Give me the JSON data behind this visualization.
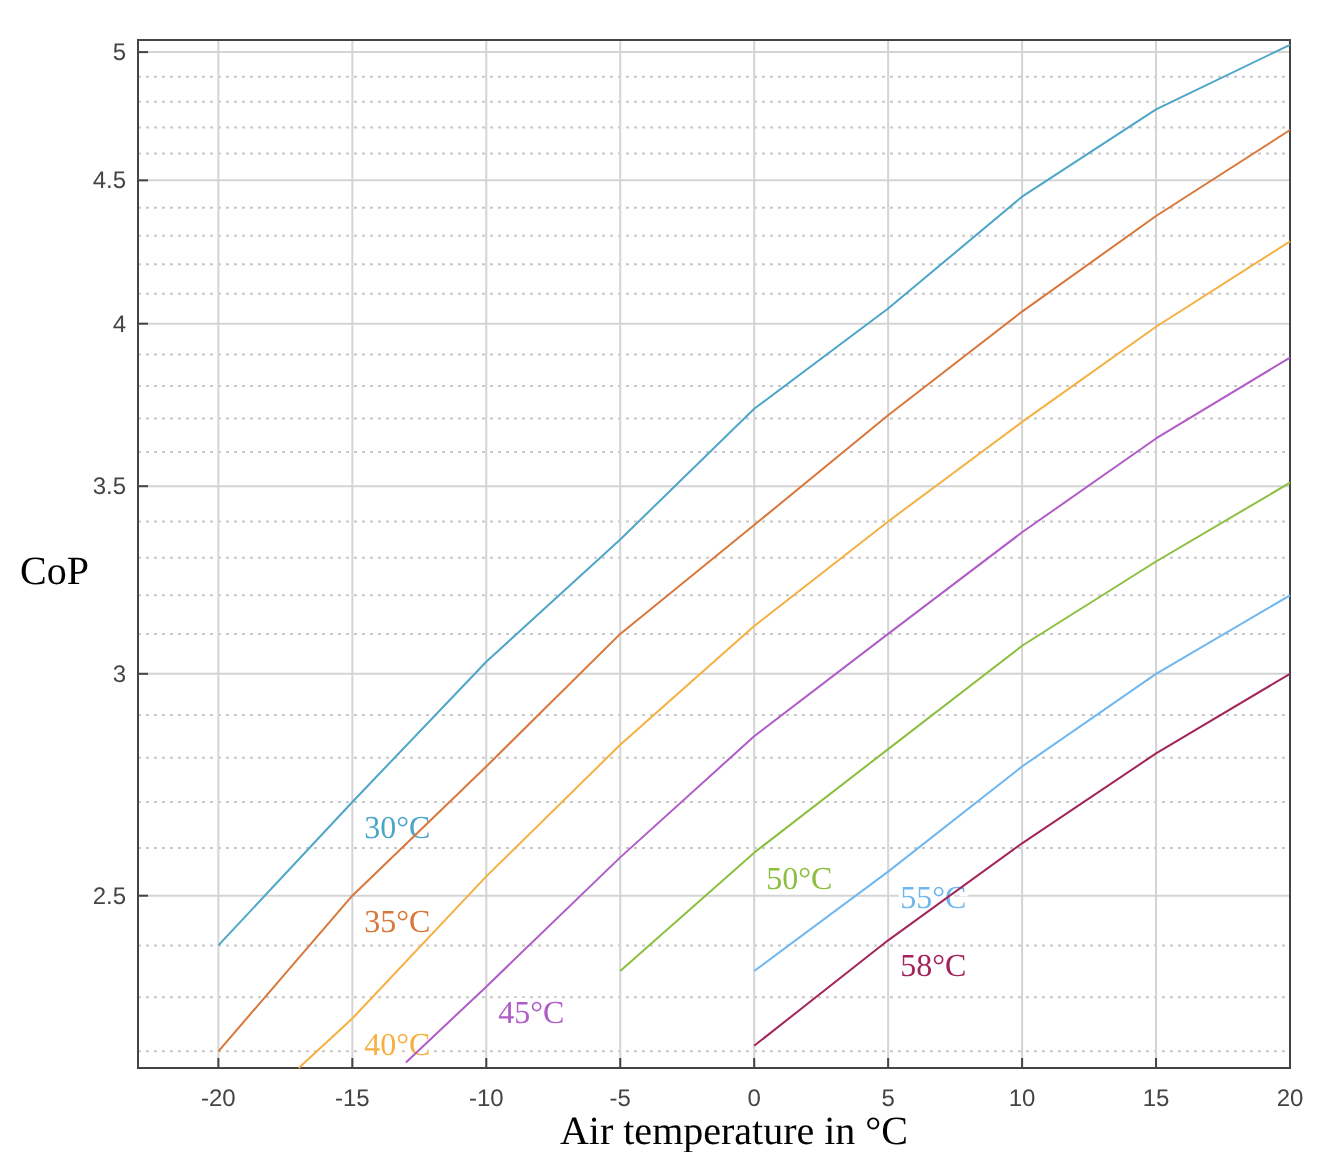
{
  "chart_data": {
    "type": "line",
    "xlabel": "Air temperature in °C",
    "ylabel": "CoP",
    "log": "y",
    "grid": true,
    "marker": "none",
    "line_style": "solid",
    "xlim": [
      -23,
      20
    ],
    "xticks": [
      -20,
      -15,
      -10,
      -5,
      0,
      5,
      10,
      15,
      20
    ],
    "ylim": [
      2.17,
      5.05
    ],
    "yticks": [
      {
        "value": 2.2,
        "label": null
      },
      {
        "value": 2.3,
        "label": null
      },
      {
        "value": 2.4,
        "label": null
      },
      2.5,
      {
        "value": 2.6,
        "label": null
      },
      {
        "value": 2.7,
        "label": null
      },
      {
        "value": 2.8,
        "label": null
      },
      {
        "value": 2.9,
        "label": null
      },
      3,
      {
        "value": 3.1,
        "label": null
      },
      {
        "value": 3.2,
        "label": null
      },
      {
        "value": 3.3,
        "label": null
      },
      {
        "value": 3.4,
        "label": null
      },
      3.5,
      {
        "value": 3.6,
        "label": null
      },
      {
        "value": 3.7,
        "label": null
      },
      {
        "value": 3.8,
        "label": null
      },
      {
        "value": 3.9,
        "label": null
      },
      4,
      {
        "value": 4.1,
        "label": null
      },
      {
        "value": 4.2,
        "label": null
      },
      {
        "value": 4.3,
        "label": null
      },
      {
        "value": 4.4,
        "label": null
      },
      4.5,
      {
        "value": 4.6,
        "label": null
      },
      {
        "value": 4.7,
        "label": null
      },
      {
        "value": 4.8,
        "label": null
      },
      {
        "value": 4.9,
        "label": null
      },
      5
    ],
    "series": [
      {
        "name": "30°C",
        "color": "#4da6c8",
        "x": [
          -20,
          -15,
          -10,
          -5,
          0,
          5,
          10,
          15,
          20
        ],
        "values": [
          2.4,
          2.7,
          3.03,
          3.35,
          3.73,
          4.05,
          4.44,
          4.77,
          5.03
        ]
      },
      {
        "name": "35°C",
        "color": "#d9773a",
        "x": [
          -20,
          -15,
          -10,
          -5,
          0,
          5,
          10,
          15,
          20
        ],
        "values": [
          2.2,
          2.5,
          2.78,
          3.1,
          3.39,
          3.71,
          4.04,
          4.37,
          4.69
        ]
      },
      {
        "name": "40°C",
        "color": "#f5b041",
        "x": [
          -17,
          -15,
          -10,
          -5,
          0,
          5,
          10,
          15,
          20
        ],
        "values": [
          2.17,
          2.26,
          2.54,
          2.83,
          3.12,
          3.4,
          3.69,
          3.99,
          4.28
        ]
      },
      {
        "name": "45°C",
        "color": "#b05cc8",
        "x": [
          -13,
          -10,
          -5,
          0,
          5,
          10,
          15,
          20
        ],
        "values": [
          2.18,
          2.32,
          2.58,
          2.85,
          3.1,
          3.37,
          3.64,
          3.89
        ]
      },
      {
        "name": "50°C",
        "color": "#8cbf3f",
        "x": [
          -5,
          0,
          5,
          10,
          15,
          20
        ],
        "values": [
          2.35,
          2.59,
          2.82,
          3.07,
          3.29,
          3.51
        ]
      },
      {
        "name": "55°C",
        "color": "#6fb7f0",
        "x": [
          0,
          5,
          10,
          15,
          20
        ],
        "values": [
          2.35,
          2.55,
          2.78,
          3.0,
          3.2
        ]
      },
      {
        "name": "58°C",
        "color": "#a3245a",
        "x": [
          0,
          5,
          10,
          15,
          20
        ],
        "values": [
          2.21,
          2.41,
          2.61,
          2.81,
          3.0
        ]
      }
    ]
  }
}
